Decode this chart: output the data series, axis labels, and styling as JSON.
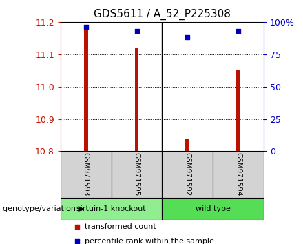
{
  "title": "GDS5611 / A_52_P225308",
  "samples": [
    "GSM971593",
    "GSM971595",
    "GSM971592",
    "GSM971594"
  ],
  "transformed_counts": [
    11.19,
    11.12,
    10.84,
    11.05
  ],
  "percentile_ranks": [
    96,
    93,
    88,
    93
  ],
  "ylim_left": [
    10.8,
    11.2
  ],
  "ylim_right": [
    0,
    100
  ],
  "yticks_left": [
    10.8,
    10.9,
    11.0,
    11.1,
    11.2
  ],
  "yticks_right": [
    0,
    25,
    50,
    75,
    100
  ],
  "bar_color": "#bb1100",
  "dot_color": "#0000bb",
  "group_labels": [
    "sirtuin-1 knockout",
    "wild type"
  ],
  "group_sample_counts": [
    2,
    2
  ],
  "group_colors": [
    "#90ee90",
    "#55dd55"
  ],
  "label_red": "transformed count",
  "label_blue": "percentile rank within the sample",
  "genotype_label": "genotype/variation",
  "tick_color_left": "#cc1100",
  "tick_color_right": "#0000cc",
  "bar_width": 0.08,
  "dot_size": 25
}
